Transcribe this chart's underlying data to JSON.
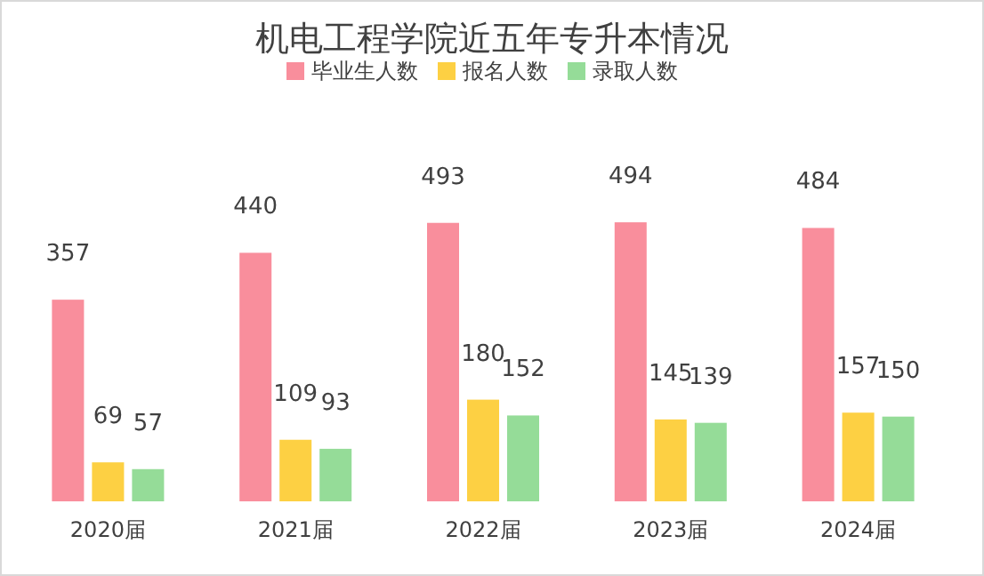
{
  "chart_data": {
    "type": "bar",
    "title": "机电工程学院近五年专升本情况",
    "categories": [
      "2020届",
      "2021届",
      "2022届",
      "2023届",
      "2024届"
    ],
    "series": [
      {
        "name": "毕业生人数",
        "color": "#f98e9c",
        "values": [
          357,
          440,
          493,
          494,
          484
        ]
      },
      {
        "name": "报名人数",
        "color": "#fdd043",
        "values": [
          69,
          109,
          180,
          145,
          157
        ]
      },
      {
        "name": "录取人数",
        "color": "#95dc98",
        "values": [
          57,
          93,
          152,
          139,
          150
        ]
      }
    ],
    "data_labels": true,
    "legend": "top",
    "grid": false
  }
}
